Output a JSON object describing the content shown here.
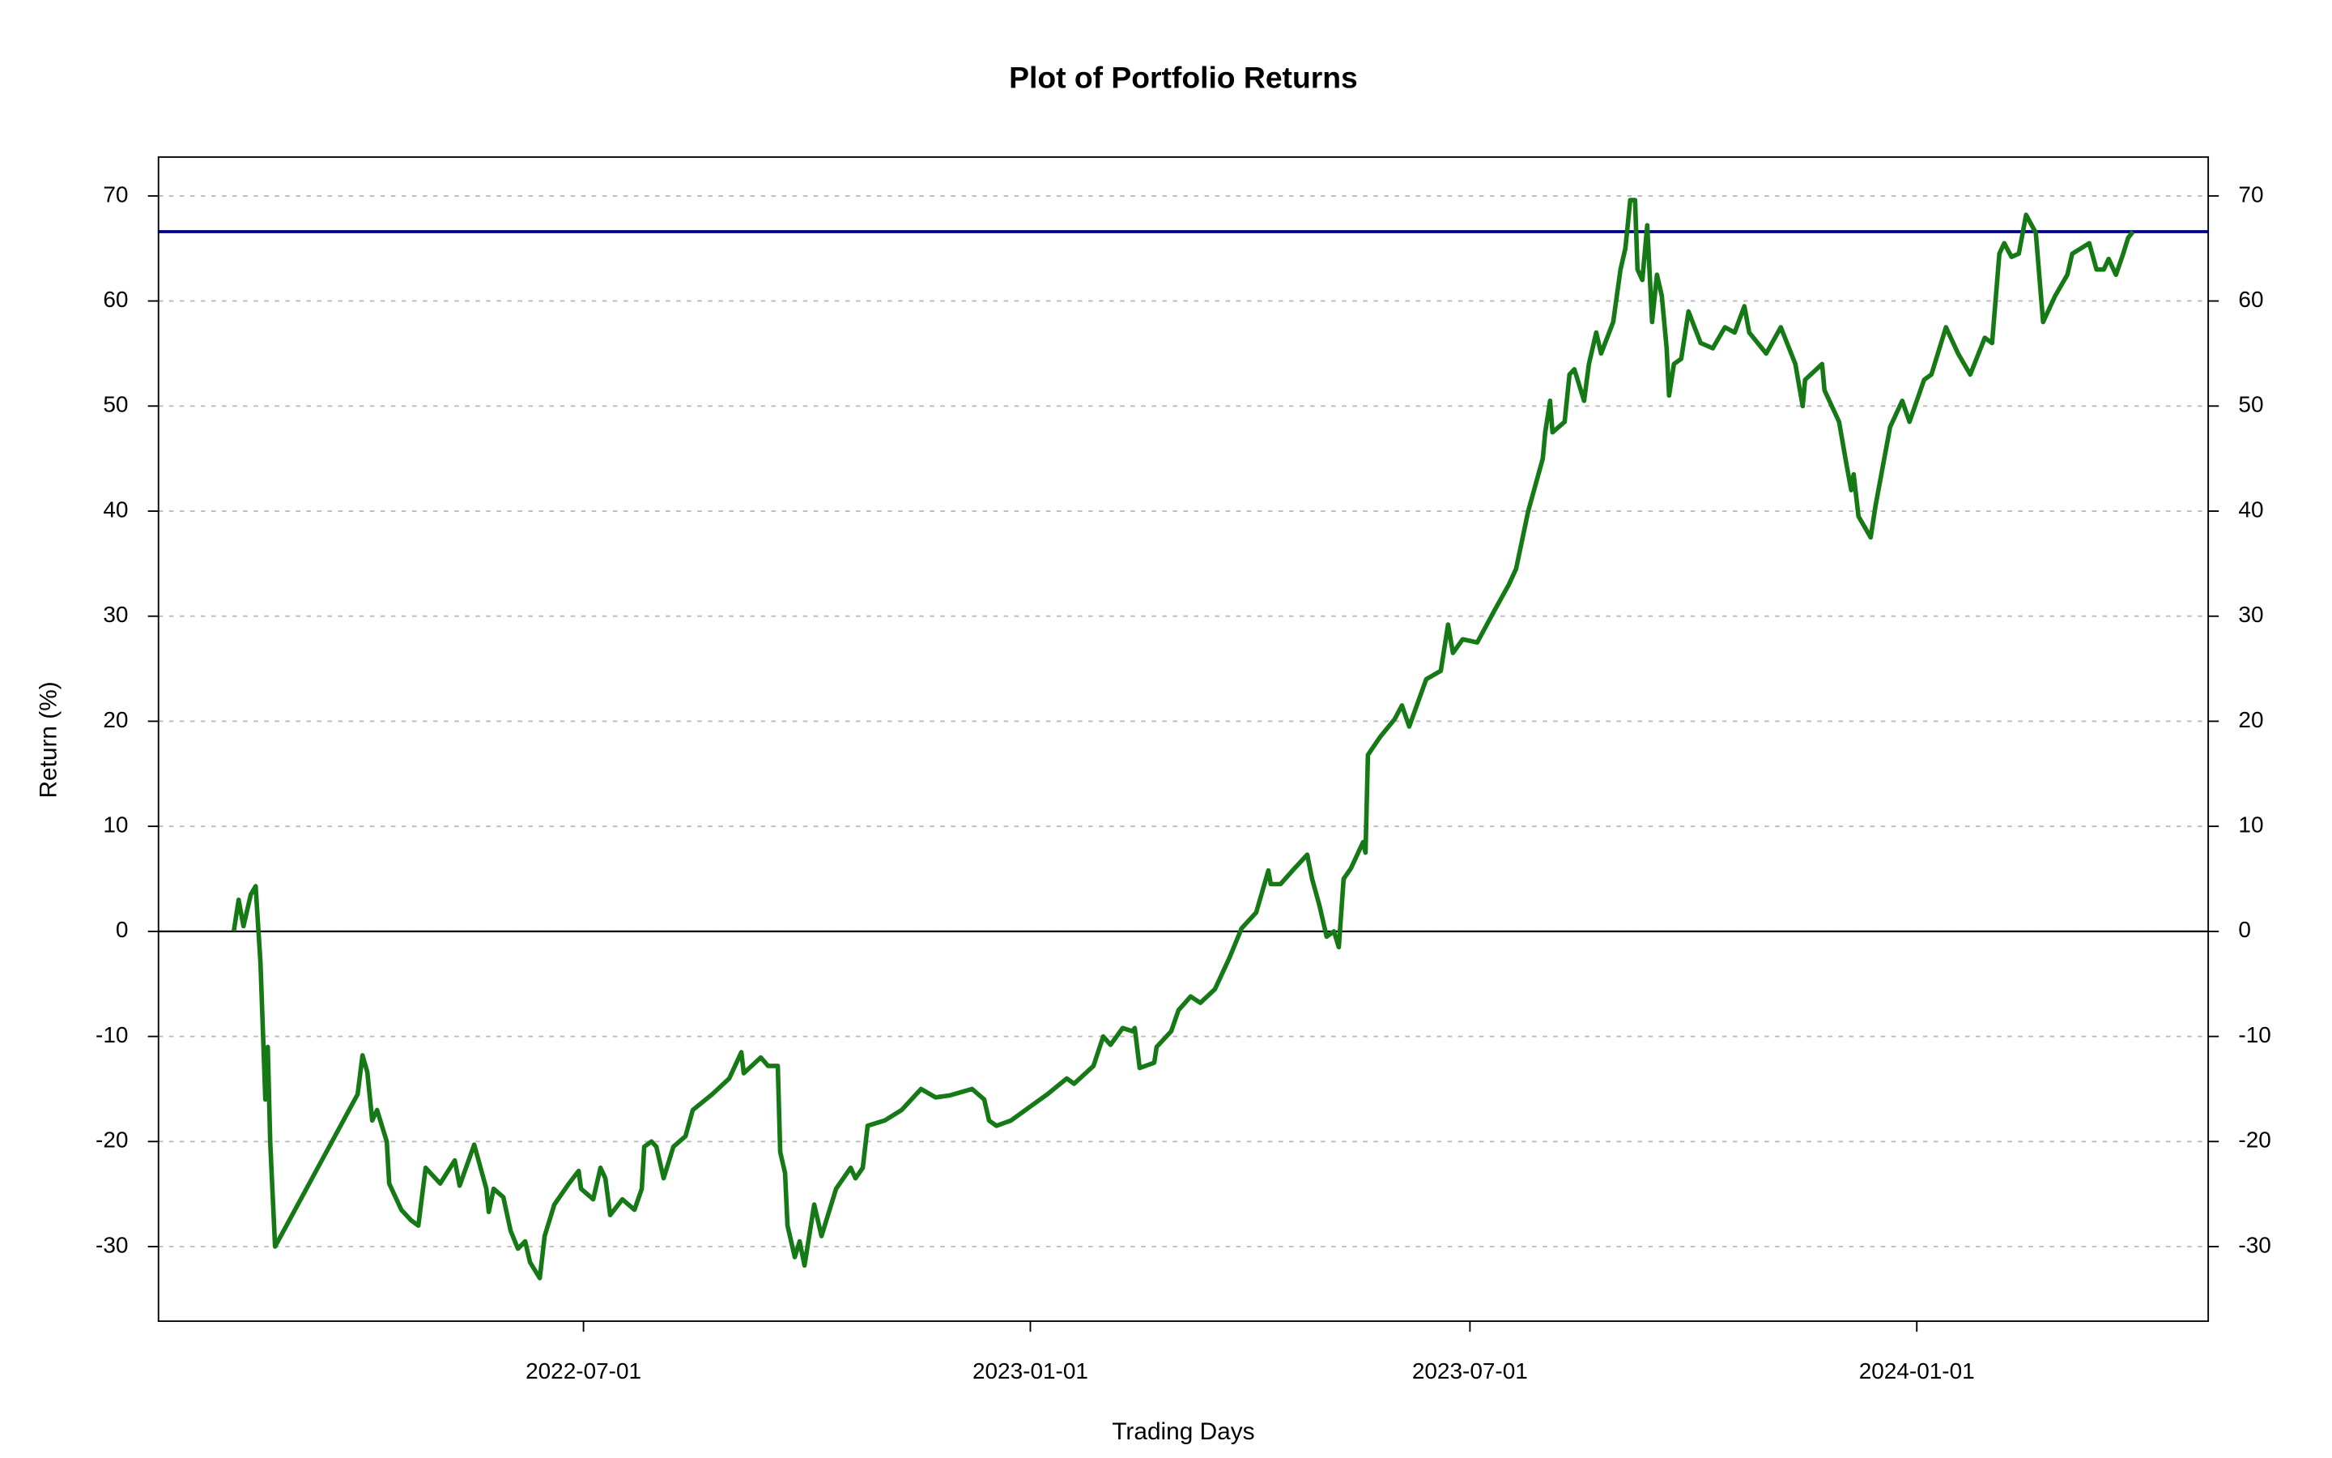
{
  "chart_data": {
    "type": "line",
    "title": "Plot of Portfolio Returns",
    "xlabel": "Trading Days",
    "ylabel": "Return (%)",
    "x": [
      "2022-02-07",
      "2022-02-09",
      "2022-02-11",
      "2022-02-14",
      "2022-02-16",
      "2022-02-18",
      "2022-02-20",
      "2022-02-21",
      "2022-02-22",
      "2022-02-24",
      "2022-03-30",
      "2022-04-01",
      "2022-04-03",
      "2022-04-05",
      "2022-04-07",
      "2022-04-11",
      "2022-04-12",
      "2022-04-17",
      "2022-04-21",
      "2022-04-24",
      "2022-04-27",
      "2022-05-03",
      "2022-05-09",
      "2022-05-11",
      "2022-05-17",
      "2022-05-22",
      "2022-05-23",
      "2022-05-25",
      "2022-05-29",
      "2022-06-01",
      "2022-06-04",
      "2022-06-07",
      "2022-06-09",
      "2022-06-13",
      "2022-06-15",
      "2022-06-19",
      "2022-06-25",
      "2022-06-29",
      "2022-06-30",
      "2022-07-05",
      "2022-07-08",
      "2022-07-10",
      "2022-07-12",
      "2022-07-17",
      "2022-07-22",
      "2022-07-25",
      "2022-07-26",
      "2022-07-29",
      "2022-07-31",
      "2022-08-03",
      "2022-08-07",
      "2022-08-12",
      "2022-08-15",
      "2022-08-23",
      "2022-08-30",
      "2022-09-04",
      "2022-09-05",
      "2022-09-12",
      "2022-09-15",
      "2022-09-19",
      "2022-09-20",
      "2022-09-22",
      "2022-09-23",
      "2022-09-26",
      "2022-09-28",
      "2022-09-30",
      "2022-10-04",
      "2022-10-07",
      "2022-10-13",
      "2022-10-19",
      "2022-10-21",
      "2022-10-24",
      "2022-10-26",
      "2022-11-02",
      "2022-11-09",
      "2022-11-17",
      "2022-11-23",
      "2022-11-29",
      "2022-12-08",
      "2022-12-13",
      "2022-12-15",
      "2022-12-18",
      "2022-12-24",
      "2023-01-02",
      "2023-01-08",
      "2023-01-16",
      "2023-01-19",
      "2023-01-27",
      "2023-01-31",
      "2023-02-03",
      "2023-02-08",
      "2023-02-12",
      "2023-02-13",
      "2023-02-15",
      "2023-02-21",
      "2023-02-22",
      "2023-02-28",
      "2023-03-03",
      "2023-03-08",
      "2023-03-12",
      "2023-03-18",
      "2023-03-24",
      "2023-03-29",
      "2023-04-04",
      "2023-04-09",
      "2023-04-10",
      "2023-04-14",
      "2023-04-19",
      "2023-04-25",
      "2023-04-27",
      "2023-04-30",
      "2023-05-03",
      "2023-05-06",
      "2023-05-08",
      "2023-05-10",
      "2023-05-13",
      "2023-05-18",
      "2023-05-19",
      "2023-05-20",
      "2023-05-25",
      "2023-05-31",
      "2023-06-03",
      "2023-06-06",
      "2023-06-13",
      "2023-06-19",
      "2023-06-22",
      "2023-06-24",
      "2023-06-28",
      "2023-07-04",
      "2023-07-11",
      "2023-07-17",
      "2023-07-20",
      "2023-07-25",
      "2023-07-31",
      "2023-08-01",
      "2023-08-03",
      "2023-08-04",
      "2023-08-09",
      "2023-08-11",
      "2023-08-13",
      "2023-08-17",
      "2023-08-19",
      "2023-08-22",
      "2023-08-24",
      "2023-08-29",
      "2023-09-01",
      "2023-09-03",
      "2023-09-05",
      "2023-09-07",
      "2023-09-08",
      "2023-09-10",
      "2023-09-12",
      "2023-09-14",
      "2023-09-16",
      "2023-09-18",
      "2023-09-20",
      "2023-09-21",
      "2023-09-23",
      "2023-09-26",
      "2023-09-29",
      "2023-10-04",
      "2023-10-09",
      "2023-10-14",
      "2023-10-18",
      "2023-10-22",
      "2023-10-24",
      "2023-10-31",
      "2023-11-06",
      "2023-11-12",
      "2023-11-15",
      "2023-11-16",
      "2023-11-23",
      "2023-11-24",
      "2023-11-30",
      "2023-12-03",
      "2023-12-05",
      "2023-12-06",
      "2023-12-08",
      "2023-12-13",
      "2023-12-15",
      "2023-12-21",
      "2023-12-26",
      "2023-12-29",
      "2024-01-04",
      "2024-01-07",
      "2024-01-13",
      "2024-01-18",
      "2024-01-23",
      "2024-01-29",
      "2024-02-01",
      "2024-02-04",
      "2024-02-06",
      "2024-02-09",
      "2024-02-12",
      "2024-02-15",
      "2024-02-19",
      "2024-02-22",
      "2024-02-27",
      "2024-03-03",
      "2024-03-05",
      "2024-03-12",
      "2024-03-15",
      "2024-03-18",
      "2024-03-20",
      "2024-03-23",
      "2024-03-26",
      "2024-03-28",
      "2024-03-30"
    ],
    "series": [
      {
        "color": "#157a15",
        "values": [
          0,
          3,
          0.5,
          3.5,
          4.3,
          -3,
          -16,
          -11,
          -20,
          -30,
          -15.5,
          -11.8,
          -13.4,
          -18,
          -17,
          -20,
          -24,
          -26.5,
          -27.5,
          -28,
          -22.5,
          -24,
          -21.8,
          -24.2,
          -20.3,
          -24.5,
          -26.7,
          -24.5,
          -25.3,
          -28.5,
          -30.2,
          -29.5,
          -31.5,
          -33,
          -29,
          -26,
          -24,
          -22.8,
          -24.5,
          -25.5,
          -22.5,
          -23.5,
          -27,
          -25.5,
          -26.5,
          -24.5,
          -20.5,
          -20,
          -20.5,
          -23.5,
          -20.5,
          -19.5,
          -17,
          -15.5,
          -14,
          -11.5,
          -13.5,
          -12,
          -12.8,
          -12.8,
          -21,
          -23,
          -28,
          -31,
          -29.5,
          -31.8,
          -26,
          -29,
          -24.5,
          -22.5,
          -23.5,
          -22.5,
          -18.5,
          -18,
          -17,
          -15,
          -15.8,
          -15.6,
          -15,
          -16,
          -18,
          -18.5,
          -18,
          -16.5,
          -15.5,
          -14,
          -14.5,
          -12.8,
          -10,
          -10.8,
          -9.2,
          -9.5,
          -9.2,
          -13,
          -12.5,
          -11,
          -9.5,
          -7.5,
          -6.2,
          -6.8,
          -5.5,
          -2.5,
          0.3,
          1.8,
          5.8,
          4.5,
          4.5,
          5.8,
          7.3,
          5,
          2.5,
          -0.5,
          0,
          -1.5,
          5,
          6,
          8.5,
          7.5,
          16.8,
          18.5,
          20.2,
          21.5,
          19.5,
          24,
          24.8,
          29.2,
          26.5,
          27.8,
          27.5,
          30.5,
          33,
          34.5,
          40,
          45,
          47.5,
          50.5,
          47.5,
          48.5,
          53,
          53.5,
          50.5,
          54,
          57,
          55,
          58,
          63,
          65,
          69.6,
          69.6,
          63,
          62,
          67.2,
          58,
          62.5,
          60.5,
          55.5,
          51,
          54,
          54.5,
          59,
          56,
          55.5,
          57.5,
          57,
          59.5,
          57,
          55,
          57.5,
          54,
          50,
          52.5,
          54,
          51.5,
          48.5,
          44.5,
          42,
          43.5,
          39.5,
          37.5,
          40.5,
          48,
          50.5,
          48.5,
          52.5,
          53,
          57.5,
          55,
          53,
          56.5,
          56,
          64.5,
          65.5,
          64.2,
          64.5,
          68.2,
          66.5,
          58,
          60.5,
          62.5,
          64.5,
          65.5,
          63,
          63,
          64,
          62.5,
          64.5,
          66,
          66.6
        ]
      }
    ],
    "reference_lines": [
      {
        "value": 66.6,
        "color": "#00008b"
      },
      {
        "value": 0,
        "color": "#000000"
      }
    ],
    "xlim": [
      "2022-01-07",
      "2024-04-30"
    ],
    "xticks": [
      "2022-07-01",
      "2023-01-01",
      "2023-07-01",
      "2024-01-01"
    ],
    "ylim": [
      -37.1,
      73.7
    ],
    "yticks": [
      -30,
      -20,
      -10,
      0,
      10,
      20,
      30,
      40,
      50,
      60,
      70
    ],
    "grid": true,
    "mirror_y_axis": true
  }
}
